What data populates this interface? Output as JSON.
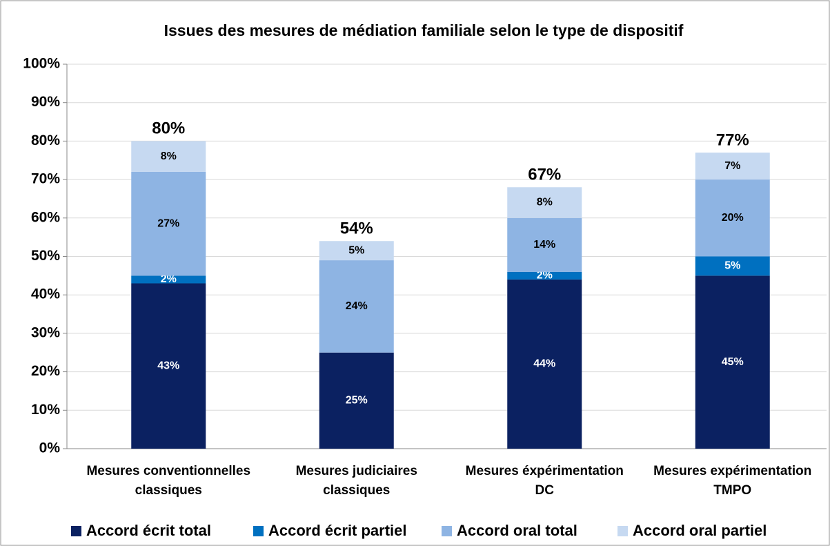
{
  "chart_data": {
    "type": "stacked_bar",
    "title": "Issues des mesures de médiation familiale selon le type de dispositif",
    "categories": [
      [
        "Mesures conventionnelles",
        "classiques"
      ],
      [
        "Mesures judiciaires",
        "classiques"
      ],
      [
        "Mesures éxpérimentation",
        "DC"
      ],
      [
        "Mesures expérimentation",
        "TMPO"
      ]
    ],
    "series": [
      {
        "name": "Accord écrit total",
        "color": "#0b2161",
        "values": [
          43,
          25,
          44,
          45
        ],
        "value_labels": [
          "43%",
          "25%",
          "44%",
          "45%"
        ]
      },
      {
        "name": "Accord écrit partiel",
        "color": "#0070c0",
        "values": [
          2,
          0,
          2,
          5
        ],
        "value_labels": [
          "2%",
          null,
          "2%",
          "5%"
        ]
      },
      {
        "name": "Accord oral total",
        "color": "#8eb4e3",
        "values": [
          27,
          24,
          14,
          20
        ],
        "value_labels": [
          "27%",
          "24%",
          "14%",
          "20%"
        ]
      },
      {
        "name": "Accord oral partiel",
        "color": "#c6d9f1",
        "values": [
          8,
          5,
          8,
          7
        ],
        "value_labels": [
          "8%",
          "5%",
          "8%",
          "7%"
        ]
      }
    ],
    "totals": {
      "values": [
        80,
        54,
        67,
        77
      ],
      "value_labels": [
        "80%",
        "54%",
        "67%",
        "77%"
      ]
    },
    "ylim": [
      0,
      100
    ],
    "yticks": [
      {
        "value": 0,
        "label": "0%"
      },
      {
        "value": 10,
        "label": "10%"
      },
      {
        "value": 20,
        "label": "20%"
      },
      {
        "value": 30,
        "label": "30%"
      },
      {
        "value": 40,
        "label": "40%"
      },
      {
        "value": 50,
        "label": "50%"
      },
      {
        "value": 60,
        "label": "60%"
      },
      {
        "value": 70,
        "label": "70%"
      },
      {
        "value": 80,
        "label": "80%"
      },
      {
        "value": 90,
        "label": "90%"
      },
      {
        "value": 100,
        "label": "100%"
      }
    ],
    "grid": true,
    "legend": "bottom"
  }
}
